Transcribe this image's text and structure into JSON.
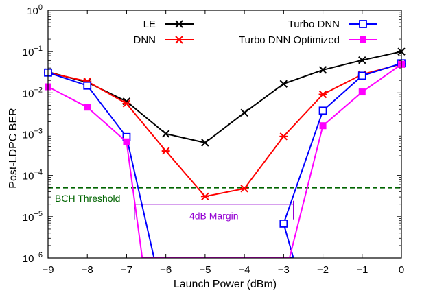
{
  "chart_data": {
    "type": "line",
    "xlabel": "Launch Power (dBm)",
    "ylabel": "Post-LDPC BER",
    "xlim": [
      -9,
      0
    ],
    "ylim": [
      1e-06,
      1
    ],
    "y_scale": "log",
    "grid": false,
    "legend_placement": "top, two columns",
    "x_tick_labels": [
      "−9",
      "−8",
      "−7",
      "−6",
      "−5",
      "−4",
      "−3",
      "−2",
      "−1",
      "0"
    ],
    "series": [
      {
        "name": "LE",
        "color": "#000000",
        "marker": "x",
        "x": [
          -9,
          -8,
          -7,
          -6,
          -5,
          -4,
          -3,
          -2,
          -1,
          0
        ],
        "y": [
          0.032,
          0.018,
          0.0062,
          0.00102,
          0.00062,
          0.0033,
          0.0165,
          0.036,
          0.062,
          0.1
        ]
      },
      {
        "name": "DNN",
        "color": "#ff0000",
        "marker": "asterisk",
        "x": [
          -9,
          -8,
          -7,
          -6,
          -5,
          -4,
          -3,
          -2,
          -1,
          0
        ],
        "y": [
          0.031,
          0.019,
          0.0055,
          0.00039,
          3.1e-05,
          4.8e-05,
          0.00088,
          0.0092,
          0.028,
          0.05
        ]
      },
      {
        "name": "Turbo DNN",
        "color": "#0000ff",
        "marker": "square-open",
        "x": [
          -9,
          -8,
          -7,
          -6.3,
          -2.75,
          -3,
          -2,
          -1,
          0
        ],
        "y": [
          0.031,
          0.015,
          0.00085,
          9e-07,
          9e-07,
          6.8e-06,
          0.0037,
          0.026,
          0.052
        ],
        "markers_at": [
          0,
          1,
          2,
          5,
          6,
          7,
          8
        ]
      },
      {
        "name": "Turbo DNN Optimized",
        "color": "#ff00ff",
        "marker": "square-filled",
        "x": [
          -9,
          -8,
          -7,
          -6.6,
          -2.85,
          -2,
          -1,
          0
        ],
        "y": [
          0.014,
          0.0045,
          0.00065,
          9e-07,
          9e-07,
          0.0016,
          0.0105,
          0.049
        ],
        "markers_at": [
          0,
          1,
          2,
          5,
          6,
          7
        ]
      }
    ],
    "threshold": {
      "label": "BCH Threshold",
      "value": 5e-05,
      "color": "#006400"
    },
    "margin_annotation": {
      "label": "4dB Margin",
      "x_start": -6.8,
      "x_end": -2.75,
      "y": 2e-05,
      "color": "#9400d3"
    }
  }
}
